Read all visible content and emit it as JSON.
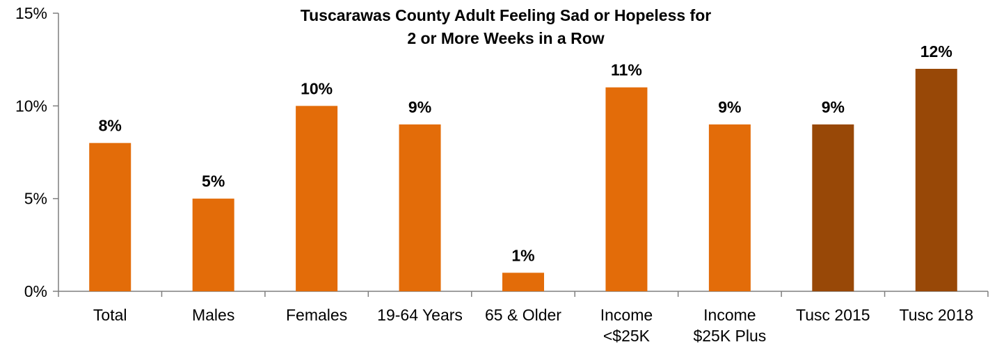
{
  "chart_data": {
    "type": "bar",
    "title_lines": [
      "Tuscarawas County Adult Feeling Sad or Hopeless for",
      "2 or More Weeks in a Row"
    ],
    "categories": [
      [
        "Total"
      ],
      [
        "Males"
      ],
      [
        "Females"
      ],
      [
        "19-64 Years"
      ],
      [
        "65 & Older"
      ],
      [
        "Income",
        "<$25K"
      ],
      [
        "Income",
        "$25K Plus"
      ],
      [
        "Tusc 2015"
      ],
      [
        "Tusc 2018"
      ]
    ],
    "values": [
      8,
      5,
      10,
      9,
      1,
      11,
      9,
      9,
      12
    ],
    "data_labels": [
      "8%",
      "5%",
      "10%",
      "9%",
      "1%",
      "11%",
      "9%",
      "9%",
      "12%"
    ],
    "bar_colors": [
      "#e36c09",
      "#e36c09",
      "#e36c09",
      "#e36c09",
      "#e36c09",
      "#e36c09",
      "#e36c09",
      "#984807",
      "#984807"
    ],
    "ylim": [
      0,
      15
    ],
    "y_ticks": [
      0,
      5,
      10,
      15
    ],
    "y_tick_labels": [
      "0%",
      "5%",
      "10%",
      "15%"
    ],
    "grid": false,
    "legend": "none"
  }
}
